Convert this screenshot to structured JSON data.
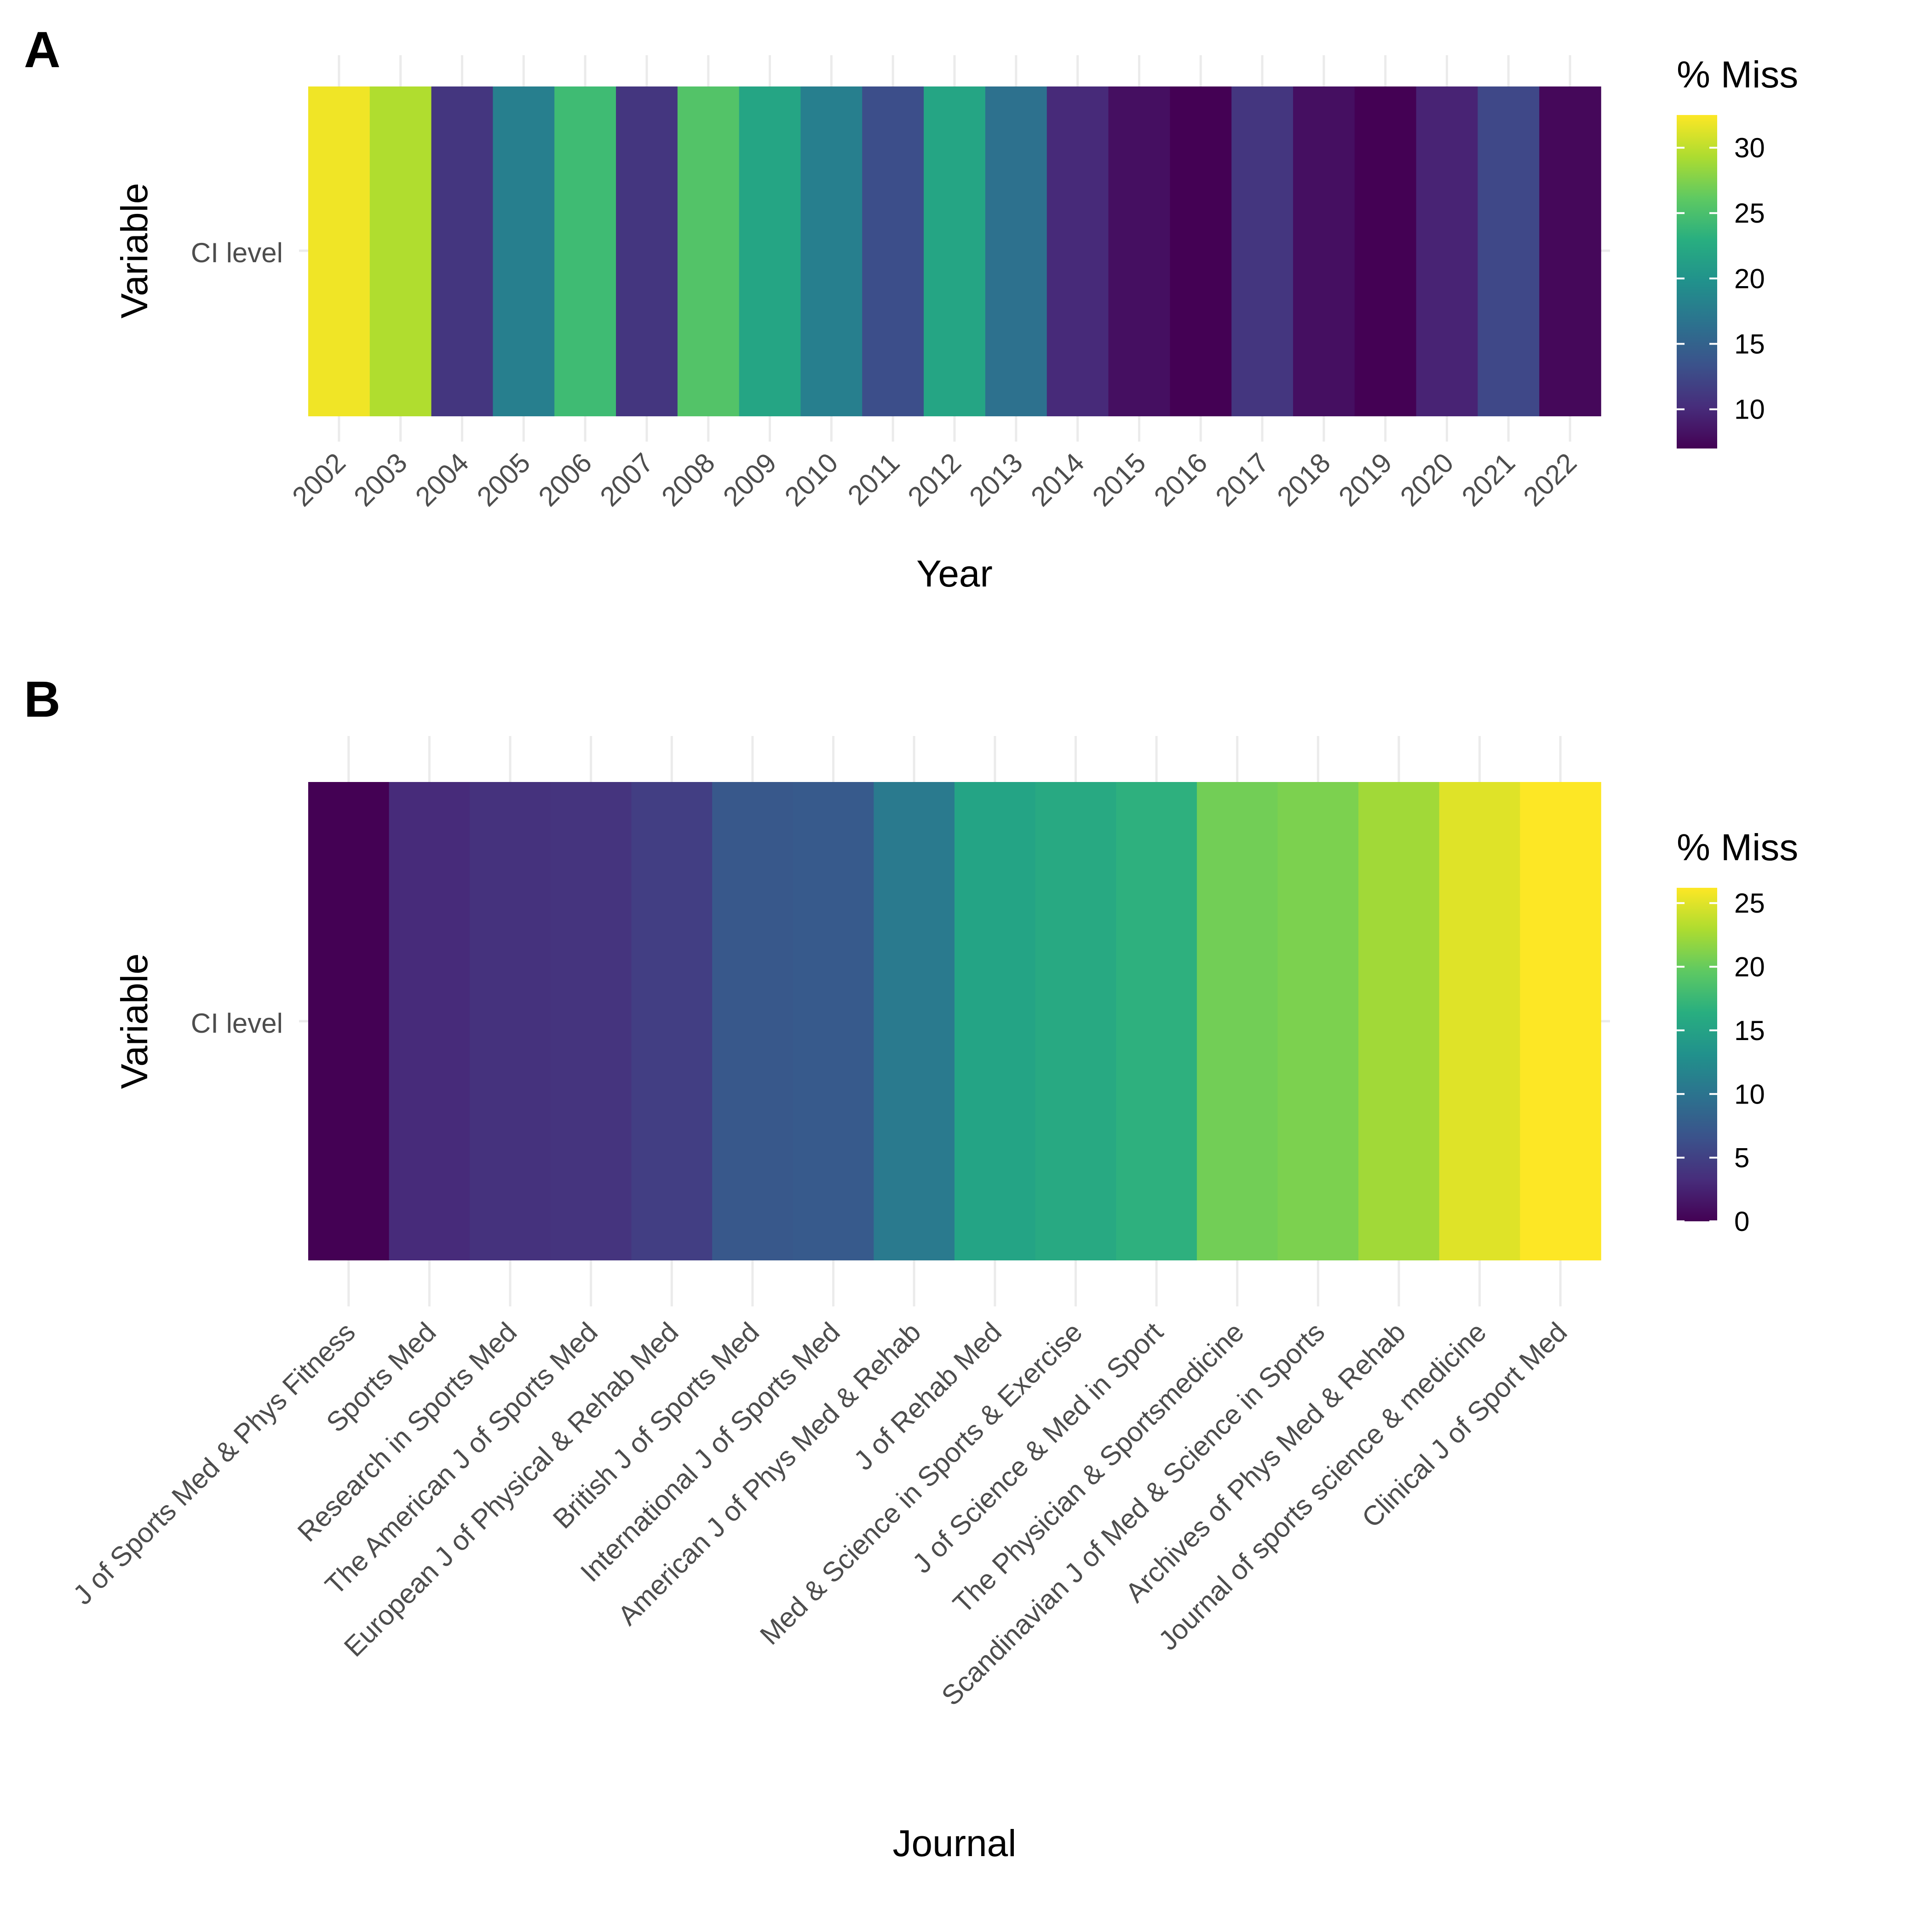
{
  "chart_data": [
    {
      "type": "heatmap",
      "panel_label": "A",
      "xlabel": "Year",
      "ylabel": "Variable",
      "y_categories": [
        "CI level"
      ],
      "categories": [
        "2002",
        "2003",
        "2004",
        "2005",
        "2006",
        "2007",
        "2008",
        "2009",
        "2010",
        "2011",
        "2012",
        "2013",
        "2014",
        "2015",
        "2016",
        "2017",
        "2018",
        "2019",
        "2020",
        "2021",
        "2022"
      ],
      "values": [
        32,
        29.5,
        11,
        18,
        24.5,
        11,
        25.5,
        22,
        18,
        13,
        22,
        16.5,
        10,
        8,
        7,
        11,
        8,
        7,
        9.5,
        12.5,
        7.5
      ],
      "legend": {
        "title": "% Miss",
        "range": [
          7,
          32.5
        ],
        "breaks": [
          10,
          15,
          20,
          25,
          30
        ],
        "placement": "right"
      },
      "colormap": "viridis",
      "grid": true
    },
    {
      "type": "heatmap",
      "panel_label": "B",
      "xlabel": "Journal",
      "ylabel": "Variable",
      "y_categories": [
        "CI level"
      ],
      "categories": [
        "J of Sports Med & Phys Fitness",
        "Sports Med",
        "Research in Sports Med",
        "The American J of Sports Med",
        "European J of Physical & Rehab Med",
        "British J of Sports Med",
        "International J of Sports Med",
        "American J of Phys Med & Rehab",
        "J of Rehab Med",
        "Med & Science in Sports & Exercise",
        "J of Science & Med in Sport",
        "The Physician & Sportsmedicine",
        "Scandinavian J of Med & Science in Sports",
        "Archives of Phys Med & Rehab",
        "Journal of sports science & medicine",
        "Clinical J of Sport Med"
      ],
      "values": [
        0,
        3.2,
        3.8,
        3.9,
        4.8,
        7.2,
        7.4,
        10.7,
        15.2,
        15.8,
        16.6,
        20.6,
        21,
        22.5,
        25,
        26.2
      ],
      "legend": {
        "title": "% Miss",
        "range": [
          0,
          26.2
        ],
        "breaks": [
          0,
          5,
          10,
          15,
          20,
          25
        ],
        "placement": "right"
      },
      "colormap": "viridis",
      "grid": true
    }
  ]
}
